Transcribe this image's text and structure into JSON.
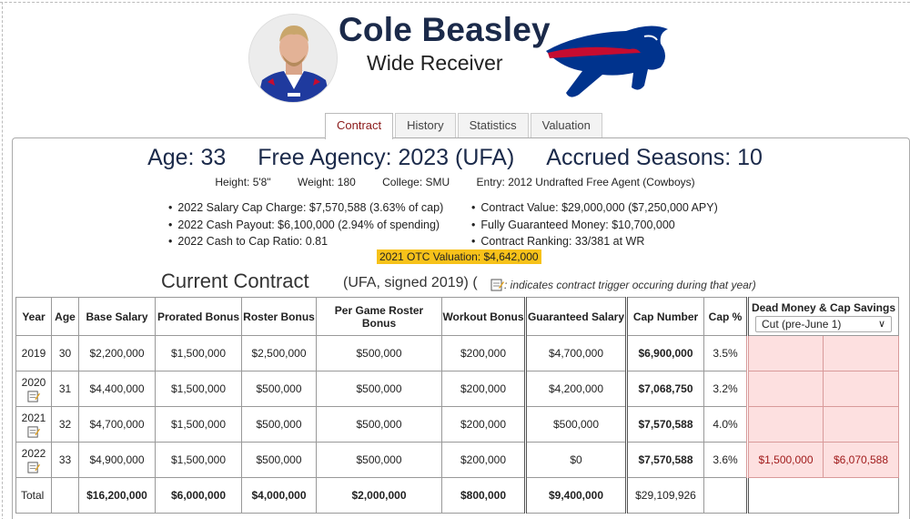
{
  "player": {
    "name": "Cole Beasley",
    "position": "Wide Receiver"
  },
  "tabs": [
    {
      "label": "Contract",
      "active": true
    },
    {
      "label": "History",
      "active": false
    },
    {
      "label": "Statistics",
      "active": false
    },
    {
      "label": "Valuation",
      "active": false
    }
  ],
  "summary": {
    "age": "Age: 33",
    "free_agency": "Free Agency: 2023 (UFA)",
    "accrued": "Accrued Seasons: 10",
    "height": "Height: 5'8\"",
    "weight": "Weight: 180",
    "college": "College: SMU",
    "entry": "Entry: 2012 Undrafted Free Agent (Cowboys)"
  },
  "facts_left": [
    "2022 Salary Cap Charge: $7,570,588 (3.63% of cap)",
    "2022 Cash Payout: $6,100,000 (2.94% of spending)",
    "2022 Cash to Cap Ratio: 0.81"
  ],
  "facts_right": [
    "Contract Value: $29,000,000 ($7,250,000 APY)",
    "Fully Guaranteed Money: $10,700,000",
    "Contract Ranking: 33/381 at WR"
  ],
  "valuation": "2021 OTC Valuation: $4,642,000",
  "contract": {
    "title": "Current Contract",
    "subtitle": "(UFA, signed 2019)",
    "paren_open": "(",
    "note": ": indicates contract trigger occuring during that year)"
  },
  "table": {
    "headers": {
      "year": "Year",
      "age": "Age",
      "base": "Base Salary",
      "prorated": "Prorated Bonus",
      "roster": "Roster Bonus",
      "per_game": "Per Game Roster Bonus",
      "workout": "Workout Bonus",
      "guaranteed": "Guaranteed Salary",
      "cap_number": "Cap Number",
      "cap_pct": "Cap %",
      "dead": "Dead Money & Cap Savings",
      "dropdown": "Cut (pre-June 1)"
    },
    "rows": [
      {
        "year": "2019",
        "age": "30",
        "base": "$2,200,000",
        "prorated": "$1,500,000",
        "roster": "$2,500,000",
        "per_game": "$500,000",
        "workout": "$200,000",
        "guaranteed": "$4,700,000",
        "cap": "$6,900,000",
        "pct": "3.5%",
        "dead": "",
        "savings": ""
      },
      {
        "year": "2020",
        "age": "31",
        "base": "$4,400,000",
        "prorated": "$1,500,000",
        "roster": "$500,000",
        "per_game": "$500,000",
        "workout": "$200,000",
        "guaranteed": "$4,200,000",
        "cap": "$7,068,750",
        "pct": "3.2%",
        "dead": "",
        "savings": ""
      },
      {
        "year": "2021",
        "age": "32",
        "base": "$4,700,000",
        "prorated": "$1,500,000",
        "roster": "$500,000",
        "per_game": "$500,000",
        "workout": "$200,000",
        "guaranteed": "$500,000",
        "cap": "$7,570,588",
        "pct": "4.0%",
        "dead": "",
        "savings": ""
      },
      {
        "year": "2022",
        "age": "33",
        "base": "$4,900,000",
        "prorated": "$1,500,000",
        "roster": "$500,000",
        "per_game": "$500,000",
        "workout": "$200,000",
        "guaranteed": "$0",
        "cap": "$7,570,588",
        "pct": "3.6%",
        "dead": "$1,500,000",
        "savings": "$6,070,588"
      }
    ],
    "total": {
      "label": "Total",
      "base": "$16,200,000",
      "prorated": "$6,000,000",
      "roster": "$4,000,000",
      "per_game": "$2,000,000",
      "workout": "$800,000",
      "guaranteed": "$9,400,000",
      "cap": "$29,109,926"
    }
  },
  "colors": {
    "name": "#1b2a4a",
    "active_tab": "#8b1a1a",
    "valuation_bg": "#f7c21a",
    "dead_cell_bg": "#fde0e0",
    "dead_text": "#a01b1b",
    "bills_blue": "#00338d",
    "bills_red": "#c60c30"
  }
}
